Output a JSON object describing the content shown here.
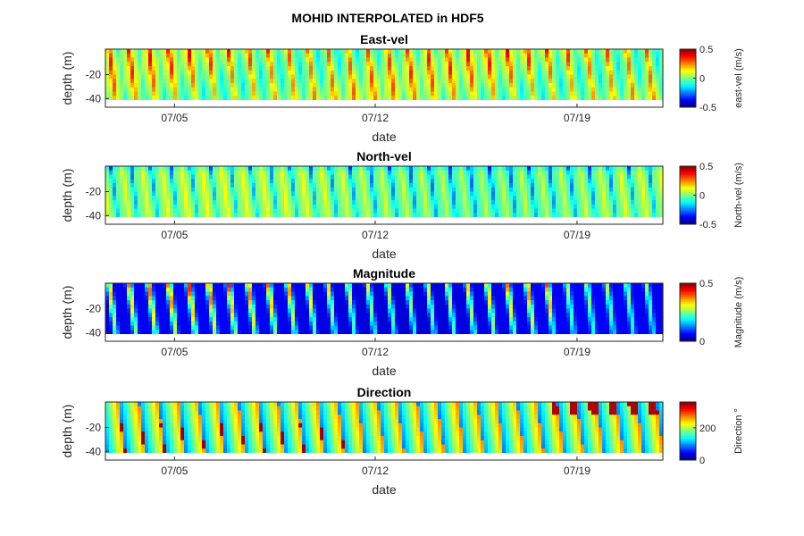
{
  "figure_title": "MOHID INTERPOLATED in HDF5",
  "chart_data": [
    {
      "type": "heatmap",
      "title": "East-vel",
      "xlabel": "date",
      "ylabel": "depth (m)",
      "x_ticks": [
        "07/05",
        "07/12",
        "07/19"
      ],
      "y_ticks": [
        "-20",
        "-40"
      ],
      "colorbar": {
        "label": "east-vel (m/s)",
        "ticks": [
          "0.5",
          "0",
          "-0.5"
        ],
        "range": [
          -0.5,
          0.5
        ],
        "colormap": "jet"
      },
      "grid": false
    },
    {
      "type": "heatmap",
      "title": "North-vel",
      "xlabel": "date",
      "ylabel": "depth (m)",
      "x_ticks": [
        "07/05",
        "07/12",
        "07/19"
      ],
      "y_ticks": [
        "-20",
        "-40"
      ],
      "colorbar": {
        "label": "North-vel (m/s)",
        "ticks": [
          "0.5",
          "0",
          "-0.5"
        ],
        "range": [
          -0.5,
          0.5
        ],
        "colormap": "jet"
      },
      "grid": false
    },
    {
      "type": "heatmap",
      "title": "Magnitude",
      "xlabel": "date",
      "ylabel": "depth (m)",
      "x_ticks": [
        "07/05",
        "07/12",
        "07/19"
      ],
      "y_ticks": [
        "-20",
        "-40"
      ],
      "colorbar": {
        "label": "Magnitude (m/s)",
        "ticks": [
          "0.5",
          "0"
        ],
        "range": [
          0,
          0.5
        ],
        "colormap": "jet"
      },
      "grid": false
    },
    {
      "type": "heatmap",
      "title": "Direction",
      "xlabel": "date",
      "ylabel": "depth (m)",
      "x_ticks": [
        "07/05",
        "07/12",
        "07/19"
      ],
      "y_ticks": [
        "-20",
        "-40"
      ],
      "colorbar": {
        "label": "Direction °",
        "ticks": [
          "200",
          "0"
        ],
        "range": [
          0,
          360
        ],
        "colormap": "jet"
      },
      "grid": false
    }
  ]
}
